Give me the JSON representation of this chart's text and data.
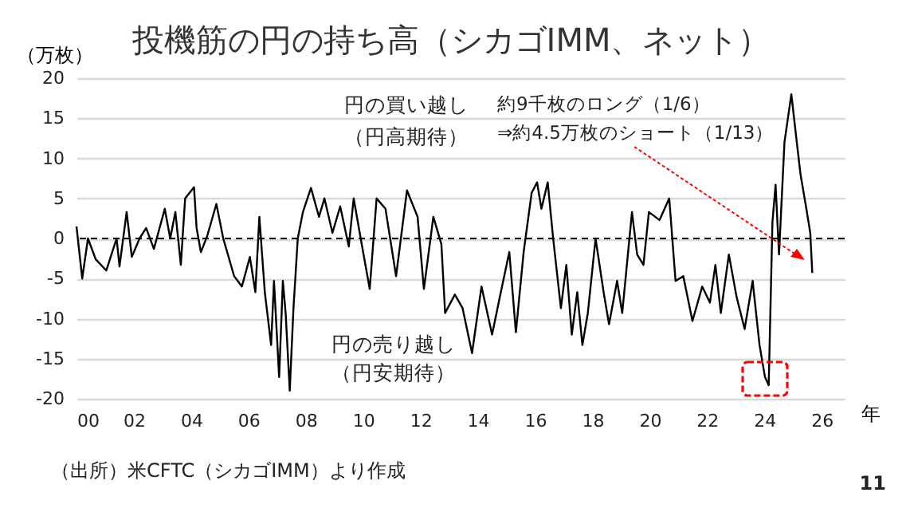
{
  "chart_data": {
    "type": "line",
    "title": "投機筋の円の持ち高（シカゴIMM、ネット）",
    "ylabel": "（万枚）",
    "xlabel": "年",
    "annotations": [
      "円の買い越し",
      "（円高期待）",
      "約9千枚のロング（1/6）",
      "⇒約4.5万枚のショート（1/13）",
      "円の売り越し",
      "（円安期待）",
      "（出所）米CFTC（シカゴIMM）より作成",
      "11"
    ],
    "x": [
      0,
      0.2,
      0.4,
      0.67,
      1.04,
      1.4,
      1.5,
      1.75,
      1.93,
      2.2,
      2.43,
      2.7,
      3.08,
      3.27,
      3.45,
      3.64,
      3.79,
      4.1,
      4.19,
      4.34,
      4.56,
      4.88,
      5.12,
      5.5,
      5.77,
      6.05,
      6.24,
      6.38,
      6.57,
      6.79,
      6.89,
      7.07,
      7.2,
      7.3,
      7.44,
      7.57,
      7.72,
      7.9,
      8.18,
      8.46,
      8.65,
      8.93,
      9.2,
      9.5,
      9.67,
      9.95,
      10.23,
      10.47,
      10.78,
      11.15,
      11.53,
      11.9,
      12.12,
      12.45,
      12.73,
      12.86,
      13.2,
      13.47,
      13.8,
      14.13,
      14.5,
      14.77,
      15.1,
      15.33,
      15.6,
      15.88,
      16.07,
      16.22,
      16.44,
      16.63,
      16.9,
      17.09,
      17.28,
      17.47,
      17.65,
      17.84,
      18.11,
      18.39,
      18.58,
      18.86,
      19.04,
      19.38,
      19.56,
      19.78,
      19.97,
      20.34,
      20.68,
      20.9,
      21.17,
      21.49,
      21.83,
      22.1,
      22.29,
      22.48,
      22.76,
      23.03,
      23.31,
      23.59,
      23.83,
      24.02,
      24.15,
      24.28,
      24.39,
      24.51,
      24.7,
      24.94,
      25.13,
      25.26,
      25.45,
      25.6,
      25.67
    ],
    "series": [
      {
        "color": "#000000",
        "values": [
          1.5,
          -5,
          0,
          -2.6,
          -4,
          0,
          -3.5,
          3.3,
          -2.3,
          0,
          1.3,
          -1.3,
          3.7,
          0,
          3.3,
          -3.3,
          5,
          6.4,
          1.3,
          -1.7,
          0.3,
          4.3,
          0,
          -4.7,
          -6,
          -2.3,
          -6.7,
          2.7,
          -6.7,
          -13.3,
          -5.3,
          -17.3,
          -5.3,
          -9.5,
          -19,
          -8.7,
          0,
          3.3,
          6.3,
          2.7,
          5,
          0.7,
          4,
          -1,
          5,
          -0.7,
          -6.3,
          5,
          3.7,
          -4.7,
          6,
          2.7,
          -6.3,
          2.7,
          -0.7,
          -9.3,
          -7,
          -8.7,
          -14.3,
          -6,
          -12,
          -7.3,
          -1.7,
          -11.7,
          -1.7,
          5.7,
          7,
          3.7,
          7,
          0,
          -8.7,
          -3.3,
          -12,
          -6.7,
          -13.3,
          -9.3,
          0,
          -6.7,
          -10.7,
          -5.3,
          -9.3,
          3.3,
          -2,
          -3.3,
          3.3,
          2.3,
          5,
          -5.3,
          -4.7,
          -10.3,
          -6,
          -8,
          -3.3,
          -9.3,
          -2,
          -7.3,
          -11.3,
          -5.3,
          -13.3,
          -17.3,
          -18.3,
          2,
          6.7,
          -2,
          12,
          18,
          12,
          8,
          4,
          0.7,
          -4.3
        ]
      }
    ],
    "xlim": [
      0,
      26.8
    ],
    "ylim": [
      -20,
      20
    ],
    "xticks": [
      {
        "value": 0,
        "label": "00"
      },
      {
        "value": 2,
        "label": "02"
      },
      {
        "value": 4,
        "label": "04"
      },
      {
        "value": 6,
        "label": "06"
      },
      {
        "value": 8,
        "label": "08"
      },
      {
        "value": 10,
        "label": "10"
      },
      {
        "value": 12,
        "label": "12"
      },
      {
        "value": 14,
        "label": "14"
      },
      {
        "value": 16,
        "label": "16"
      },
      {
        "value": 18,
        "label": "18"
      },
      {
        "value": 20,
        "label": "20"
      },
      {
        "value": 22,
        "label": "22"
      },
      {
        "value": 24,
        "label": "24"
      },
      {
        "value": 26,
        "label": "26"
      }
    ],
    "yticks": [
      -20,
      -15,
      -10,
      -5,
      0,
      5,
      10,
      15,
      20
    ],
    "grid": "y",
    "ref_lines": [
      {
        "axis": "y",
        "value": 0,
        "color": "#000000",
        "line_style": "dashed"
      }
    ]
  }
}
